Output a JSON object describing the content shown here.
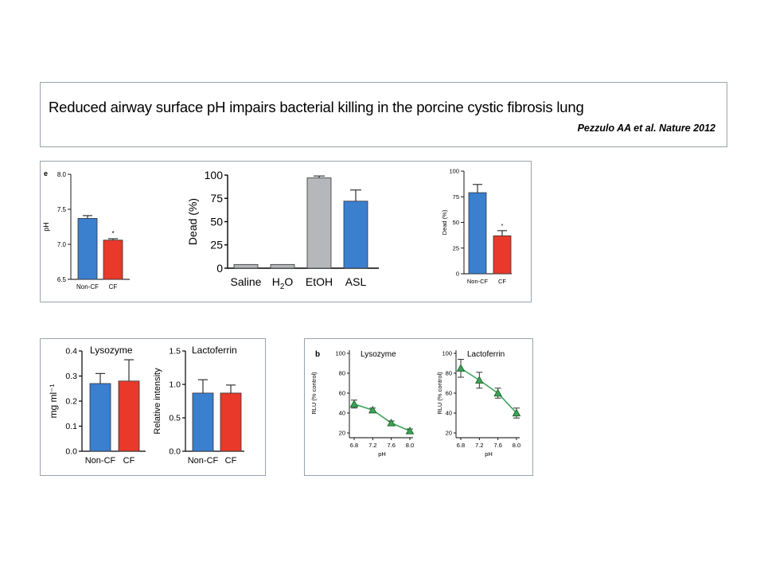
{
  "header": {
    "title": "Reduced airway surface pH impairs bacterial killing in the porcine cystic fibrosis lung",
    "citation": "Pezzulo AA et al. Nature 2012"
  },
  "colors": {
    "noncf": "#3b7fcf",
    "cf": "#e8392b",
    "gray": "#b5b7ba",
    "line": "#3da35a",
    "marker": "#1f6b2e"
  },
  "chart_data": [
    {
      "id": "ph",
      "type": "bar",
      "panel_label": "e",
      "categories": [
        "Non-CF",
        "CF"
      ],
      "values": [
        7.37,
        7.06
      ],
      "errors": [
        0.04,
        0.02
      ],
      "significance": [
        "",
        "*"
      ],
      "ylabel": "pH",
      "ylim": [
        6.5,
        8.0
      ],
      "yticks": [
        "6.5",
        "7.0",
        "7.5",
        "8.0"
      ],
      "tickvals": [
        6.5,
        7.0,
        7.5,
        8.0
      ]
    },
    {
      "id": "dead-treatments",
      "type": "bar",
      "categories": [
        "Saline",
        "H2O",
        "EtOH",
        "ASL"
      ],
      "values": [
        4,
        4,
        97,
        72
      ],
      "errors": [
        0,
        0,
        2,
        12
      ],
      "ylabel": "Dead (%)",
      "ylim": [
        0,
        100
      ],
      "yticks": [
        "0",
        "25",
        "50",
        "75",
        "100"
      ],
      "tickvals": [
        0,
        25,
        50,
        75,
        100
      ]
    },
    {
      "id": "dead-cf",
      "type": "bar",
      "categories": [
        "Non-CF",
        "CF"
      ],
      "values": [
        79,
        37
      ],
      "errors": [
        8,
        5
      ],
      "significance": [
        "",
        "*"
      ],
      "ylabel": "Dead (%)",
      "ylim": [
        0,
        100
      ],
      "yticks": [
        "0",
        "25",
        "50",
        "75",
        "100"
      ],
      "tickvals": [
        0,
        25,
        50,
        75,
        100
      ]
    },
    {
      "id": "lysozyme",
      "type": "bar",
      "title": "Lysozyme",
      "categories": [
        "Non-CF",
        "CF"
      ],
      "values": [
        0.27,
        0.28
      ],
      "errors": [
        0.04,
        0.085
      ],
      "ylabel": "mg ml⁻¹",
      "ylim": [
        0,
        0.4
      ],
      "yticks": [
        "0.0",
        "0.1",
        "0.2",
        "0.3",
        "0.4"
      ],
      "tickvals": [
        0,
        0.1,
        0.2,
        0.3,
        0.4
      ]
    },
    {
      "id": "lactoferrin",
      "type": "bar",
      "title": "Lactoferrin",
      "categories": [
        "Non-CF",
        "CF"
      ],
      "values": [
        0.87,
        0.87
      ],
      "errors": [
        0.2,
        0.12
      ],
      "ylabel": "Relative intensity",
      "ylim": [
        0,
        1.5
      ],
      "yticks": [
        "0.0",
        "0.5",
        "1.0",
        "1.5"
      ],
      "tickvals": [
        0,
        0.5,
        1.0,
        1.5
      ]
    },
    {
      "id": "rlu-lysozyme",
      "type": "line",
      "panel_label": "b",
      "title": "Lysozyme",
      "x": [
        6.8,
        7.2,
        7.6,
        8.0
      ],
      "values": [
        49,
        43,
        30,
        22
      ],
      "errors": [
        4,
        2,
        2,
        2
      ],
      "xlabel": "pH",
      "ylabel": "RLU (% control)",
      "xlim": [
        6.8,
        8.0
      ],
      "ylim": [
        20,
        100
      ],
      "xticks": [
        "6.8",
        "7.2",
        "7.6",
        "8.0"
      ],
      "yticks": [
        "20",
        "40",
        "60",
        "80",
        "100"
      ],
      "tickvals": [
        20,
        40,
        60,
        80,
        100
      ]
    },
    {
      "id": "rlu-lactoferrin",
      "type": "line",
      "title": "Lactoferrin",
      "x": [
        6.8,
        7.2,
        7.6,
        8.0
      ],
      "values": [
        85,
        73,
        60,
        40
      ],
      "errors": [
        9,
        8,
        5,
        5
      ],
      "xlabel": "pH",
      "ylabel": "RLU (% control)",
      "xlim": [
        6.8,
        8.0
      ],
      "ylim": [
        20,
        100
      ],
      "xticks": [
        "6.8",
        "7.2",
        "7.6",
        "8.0"
      ],
      "yticks": [
        "20",
        "40",
        "60",
        "80",
        "100"
      ],
      "tickvals": [
        20,
        40,
        60,
        80,
        100
      ]
    }
  ]
}
